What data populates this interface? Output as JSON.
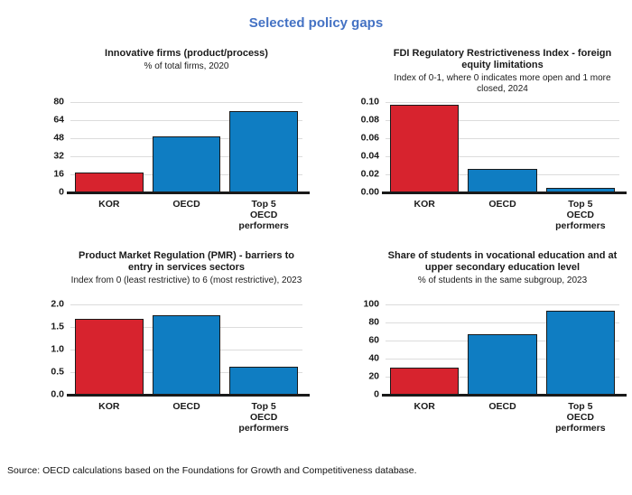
{
  "page": {
    "title": "Selected policy gaps",
    "source": "Source: OECD calculations based on the Foundations for Growth and Competitiveness database."
  },
  "colors": {
    "title_blue": "#4472c4",
    "kor_red": "#d7232e",
    "oecd_blue": "#0f7dc2",
    "gridline": "#dcdcdc",
    "axis": "#1a1a1a"
  },
  "chart_data": [
    {
      "type": "bar",
      "title": "Innovative firms (product/process)",
      "subtitle": "% of total firms, 2020",
      "categories": [
        "KOR",
        "OECD",
        "Top 5\nOECD\nperformers"
      ],
      "values": [
        18,
        50,
        72
      ],
      "ylim": [
        0,
        80
      ],
      "yticks": [
        0,
        16,
        32,
        48,
        64,
        80
      ],
      "ytick_labels": [
        "0",
        "16",
        "32",
        "48",
        "64",
        "80"
      ],
      "bar_colors": [
        "#d7232e",
        "#0f7dc2",
        "#0f7dc2"
      ],
      "grid": true,
      "legend": "none"
    },
    {
      "type": "bar",
      "title": "FDI Regulatory Restrictiveness Index - foreign equity limitations",
      "subtitle": "Index of 0-1, where 0 indicates more open and 1 more closed, 2024",
      "categories": [
        "KOR",
        "OECD",
        "Top 5\nOECD\nperformers"
      ],
      "values": [
        0.097,
        0.026,
        0.005
      ],
      "ylim": [
        0,
        0.1
      ],
      "yticks": [
        0,
        0.02,
        0.04,
        0.06,
        0.08,
        0.1
      ],
      "ytick_labels": [
        "0.00",
        "0.02",
        "0.04",
        "0.06",
        "0.08",
        "0.10"
      ],
      "bar_colors": [
        "#d7232e",
        "#0f7dc2",
        "#0f7dc2"
      ],
      "grid": true,
      "legend": "none"
    },
    {
      "type": "bar",
      "title": "Product Market Regulation (PMR) - barriers to entry in services sectors",
      "subtitle": "Index from 0 (least restrictive) to 6 (most restrictive), 2023",
      "categories": [
        "KOR",
        "OECD",
        "Top 5\nOECD\nperformers"
      ],
      "values": [
        1.69,
        1.77,
        0.63
      ],
      "ylim": [
        0,
        2.0
      ],
      "yticks": [
        0,
        0.5,
        1.0,
        1.5,
        2.0
      ],
      "ytick_labels": [
        "0.0",
        "0.5",
        "1.0",
        "1.5",
        "2.0"
      ],
      "bar_colors": [
        "#d7232e",
        "#0f7dc2",
        "#0f7dc2"
      ],
      "grid": true,
      "legend": "none"
    },
    {
      "type": "bar",
      "title": "Share of students in vocational education and at upper secondary education level",
      "subtitle": "% of students in the same subgroup, 2023",
      "categories": [
        "KOR",
        "OECD",
        "Top 5\nOECD\nperformers"
      ],
      "values": [
        30,
        67,
        93
      ],
      "ylim": [
        0,
        100
      ],
      "yticks": [
        0,
        20,
        40,
        60,
        80,
        100
      ],
      "ytick_labels": [
        "0",
        "20",
        "40",
        "60",
        "80",
        "100"
      ],
      "bar_colors": [
        "#d7232e",
        "#0f7dc2",
        "#0f7dc2"
      ],
      "grid": true,
      "legend": "none"
    }
  ]
}
